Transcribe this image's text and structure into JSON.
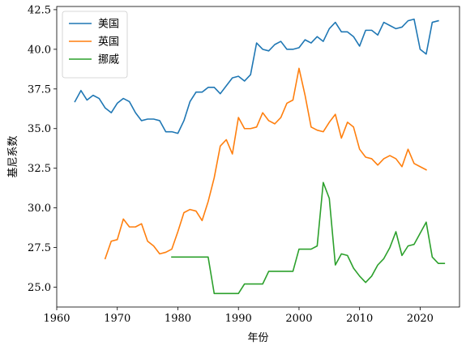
{
  "chart_data": {
    "type": "line",
    "title": "",
    "xlabel": "年份",
    "ylabel": "基尼系数",
    "xlim": [
      1960,
      2026.5
    ],
    "ylim": [
      23.75,
      42.7
    ],
    "xticks": [
      1960,
      1970,
      1980,
      1990,
      2000,
      2010,
      2020
    ],
    "yticks": [
      25.0,
      27.5,
      30.0,
      32.5,
      35.0,
      37.5,
      40.0,
      42.5
    ],
    "ytick_labels": [
      "25.0",
      "27.5",
      "30.0",
      "32.5",
      "35.0",
      "37.5",
      "40.0",
      "42.5"
    ],
    "grid": false,
    "legend_position": "upper-left",
    "series": [
      {
        "name": "美国",
        "color": "#1f77b4",
        "x": [
          1963,
          1964,
          1965,
          1966,
          1967,
          1968,
          1969,
          1970,
          1971,
          1972,
          1973,
          1974,
          1975,
          1976,
          1977,
          1978,
          1979,
          1980,
          1981,
          1982,
          1983,
          1984,
          1985,
          1986,
          1987,
          1988,
          1989,
          1990,
          1991,
          1992,
          1993,
          1994,
          1995,
          1996,
          1997,
          1998,
          1999,
          2000,
          2001,
          2002,
          2003,
          2004,
          2005,
          2006,
          2007,
          2008,
          2009,
          2010,
          2011,
          2012,
          2013,
          2014,
          2015,
          2016,
          2017,
          2018,
          2019,
          2020,
          2021,
          2022,
          2023
        ],
        "y": [
          36.7,
          37.4,
          36.8,
          37.1,
          36.9,
          36.3,
          36.0,
          36.6,
          36.9,
          36.7,
          36.0,
          35.5,
          35.6,
          35.6,
          35.5,
          34.8,
          34.8,
          34.7,
          35.5,
          36.7,
          37.3,
          37.3,
          37.6,
          37.6,
          37.2,
          37.7,
          38.2,
          38.3,
          38.0,
          38.4,
          40.4,
          40.0,
          39.9,
          40.3,
          40.5,
          40.0,
          40.0,
          40.1,
          40.6,
          40.4,
          40.8,
          40.5,
          41.3,
          41.7,
          41.1,
          41.1,
          40.8,
          40.2,
          41.2,
          41.2,
          40.9,
          41.7,
          41.5,
          41.3,
          41.4,
          41.8,
          41.9,
          40.0,
          39.7,
          41.7,
          41.8
        ]
      },
      {
        "name": "英国",
        "color": "#ff7f0e",
        "x": [
          1968,
          1969,
          1970,
          1971,
          1972,
          1973,
          1974,
          1975,
          1976,
          1977,
          1978,
          1979,
          1980,
          1981,
          1982,
          1983,
          1984,
          1985,
          1986,
          1987,
          1988,
          1989,
          1990,
          1991,
          1992,
          1993,
          1994,
          1995,
          1996,
          1997,
          1998,
          1999,
          2000,
          2001,
          2002,
          2003,
          2004,
          2005,
          2006,
          2007,
          2008,
          2009,
          2010,
          2011,
          2012,
          2013,
          2014,
          2015,
          2016,
          2017,
          2018,
          2019,
          2020,
          2021
        ],
        "y": [
          26.8,
          27.9,
          28.0,
          29.3,
          28.8,
          28.8,
          29.0,
          27.9,
          27.6,
          27.1,
          27.2,
          27.4,
          28.5,
          29.7,
          29.9,
          29.8,
          29.2,
          30.4,
          31.9,
          33.9,
          34.3,
          33.4,
          35.7,
          35.0,
          35.0,
          35.1,
          36.0,
          35.5,
          35.3,
          35.7,
          36.6,
          36.8,
          38.8,
          37.1,
          35.1,
          34.9,
          34.8,
          35.4,
          35.9,
          34.4,
          35.4,
          35.1,
          33.7,
          33.2,
          33.1,
          32.7,
          33.1,
          33.3,
          33.1,
          32.6,
          33.7,
          32.8,
          32.6,
          32.4
        ]
      },
      {
        "name": "挪威",
        "color": "#2ca02c",
        "x": [
          1979,
          1985,
          1986,
          1990,
          1991,
          1994,
          1995,
          1999,
          2000,
          2002,
          2003,
          2004,
          2005,
          2006,
          2007,
          2008,
          2009,
          2010,
          2011,
          2012,
          2013,
          2014,
          2015,
          2016,
          2017,
          2018,
          2019,
          2021,
          2022,
          2023,
          2024
        ],
        "y": [
          26.9,
          26.9,
          24.6,
          24.6,
          25.2,
          25.2,
          26.0,
          26.0,
          27.4,
          27.4,
          27.6,
          31.6,
          30.6,
          26.4,
          27.1,
          27.0,
          26.2,
          25.7,
          25.3,
          25.7,
          26.4,
          26.8,
          27.5,
          28.5,
          27.0,
          27.6,
          27.7,
          29.1,
          26.9,
          26.5,
          26.5
        ]
      }
    ]
  }
}
